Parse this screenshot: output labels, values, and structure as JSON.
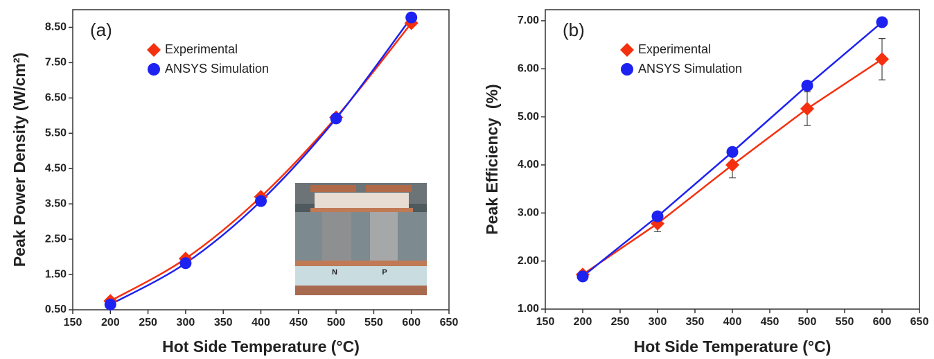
{
  "chart_data": [
    {
      "type": "line",
      "smooth": true,
      "panel_label": "(a)",
      "x_label": "Hot Side Temperature (°C)",
      "y_label": "Peak Power Density (W/cm²)",
      "xlim": [
        150,
        650
      ],
      "xticks": [
        150,
        200,
        250,
        300,
        350,
        400,
        450,
        500,
        550,
        600,
        650
      ],
      "ylim": [
        0.5,
        9.0
      ],
      "yticks": [
        {
          "value": 0.5,
          "label": "0.50"
        },
        {
          "value": 1.5,
          "label": "1.50"
        },
        {
          "value": 2.5,
          "label": "2.50"
        },
        {
          "value": 3.5,
          "label": "3.50"
        },
        {
          "value": 4.5,
          "label": "4.50"
        },
        {
          "value": 5.5,
          "label": "5.50"
        },
        {
          "value": 6.5,
          "label": "6.50"
        },
        {
          "value": 7.5,
          "label": "7.50"
        },
        {
          "value": 8.5,
          "label": "8.50"
        }
      ],
      "legend": "upper left",
      "inset_labels": [
        "N",
        "P"
      ],
      "x": [
        200,
        300,
        400,
        500,
        600
      ],
      "series": [
        {
          "name": "Experimental",
          "color": "#f5300f",
          "marker": "diamond",
          "values": [
            0.75,
            1.95,
            3.7,
            5.95,
            8.62
          ]
        },
        {
          "name": "ANSYS Simulation",
          "color": "#1e22f0",
          "marker": "circle",
          "values": [
            0.65,
            1.82,
            3.58,
            5.92,
            8.78
          ]
        }
      ]
    },
    {
      "type": "line",
      "smooth": false,
      "panel_label": "(b)",
      "x_label": "Hot Side Temperature (°C)",
      "y_label": "Peak Efficiency  (%)",
      "xlim": [
        150,
        650
      ],
      "xticks": [
        150,
        200,
        250,
        300,
        350,
        400,
        450,
        500,
        550,
        600,
        650
      ],
      "ylim": [
        1.0,
        7.23
      ],
      "yticks": [
        {
          "value": 1,
          "label": "1.00"
        },
        {
          "value": 2,
          "label": "2.00"
        },
        {
          "value": 3,
          "label": "3.00"
        },
        {
          "value": 4,
          "label": "4.00"
        },
        {
          "value": 5,
          "label": "5.00"
        },
        {
          "value": 6,
          "label": "6.00"
        },
        {
          "value": 7,
          "label": "7.00"
        }
      ],
      "legend": "upper left",
      "x": [
        200,
        300,
        400,
        500,
        600
      ],
      "series": [
        {
          "name": "Experimental",
          "color": "#f5300f",
          "marker": "diamond",
          "values": [
            1.72,
            2.78,
            4.0,
            5.17,
            6.2
          ],
          "errors": [
            0.07,
            0.17,
            0.27,
            0.35,
            0.43
          ]
        },
        {
          "name": "ANSYS Simulation",
          "color": "#1e22f0",
          "marker": "circle",
          "values": [
            1.68,
            2.93,
            4.27,
            5.65,
            6.97
          ]
        }
      ]
    }
  ]
}
